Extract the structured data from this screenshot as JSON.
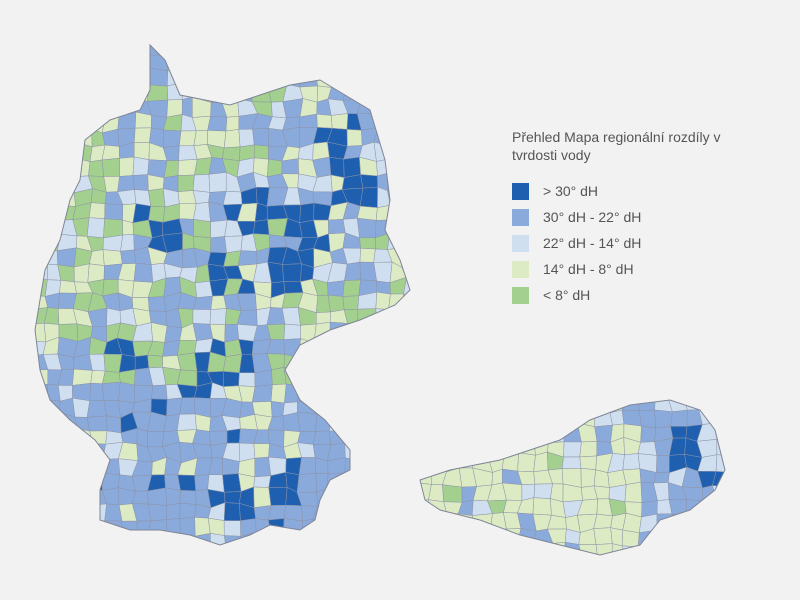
{
  "legend": {
    "title": "Přehled Mapa regionální rozdíly v tvrdosti vody",
    "items": [
      {
        "label": "> 30° dH",
        "color": "#1f5fb0"
      },
      {
        "label": "30° dH - 22° dH",
        "color": "#8aaadc"
      },
      {
        "label": "22° dH - 14° dH",
        "color": "#cfdff0"
      },
      {
        "label": "14° dH - 8° dH",
        "color": "#dcebc4"
      },
      {
        "label": "< 8° dH",
        "color": "#a3d08f"
      }
    ]
  }
}
